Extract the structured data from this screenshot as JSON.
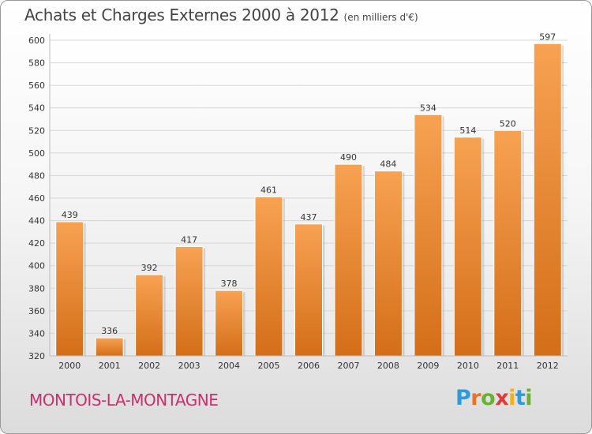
{
  "chart_data": {
    "type": "bar",
    "title": "Achats et Charges Externes 2000 à 2012",
    "subtitle": "(en milliers d'€)",
    "categories": [
      "2000",
      "2001",
      "2002",
      "2003",
      "2004",
      "2005",
      "2006",
      "2007",
      "2008",
      "2009",
      "2010",
      "2011",
      "2012"
    ],
    "values": [
      439,
      336,
      392,
      417,
      378,
      461,
      437,
      490,
      484,
      534,
      514,
      520,
      597
    ],
    "ylim": [
      320,
      600
    ],
    "yticks": [
      320,
      340,
      360,
      380,
      400,
      420,
      440,
      460,
      480,
      500,
      520,
      540,
      560,
      580,
      600
    ],
    "grid": true,
    "bar_color_top": "#f7a252",
    "bar_color_bottom": "#d46e18"
  },
  "footer": {
    "commune": "MONTOIS-LA-MONTAGNE",
    "commune_color": "#cc2f6e",
    "logo": "Proxiti"
  }
}
